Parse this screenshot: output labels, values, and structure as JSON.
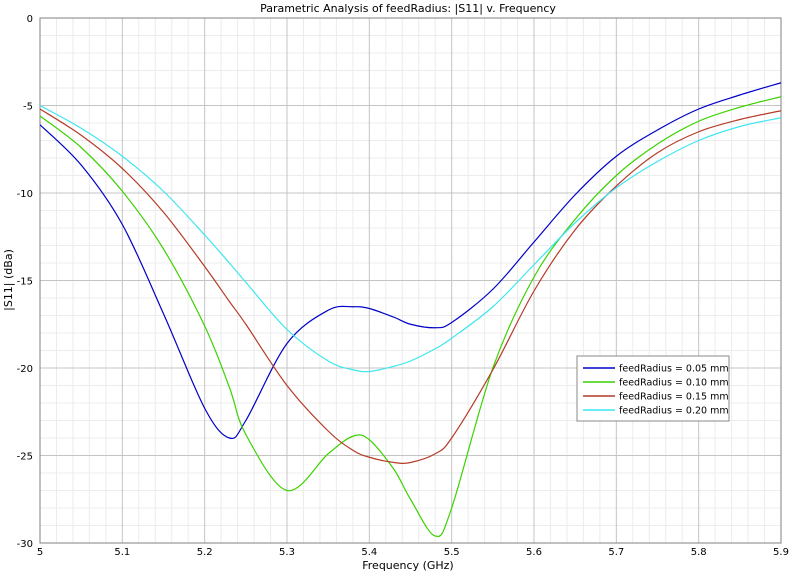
{
  "chart_data": {
    "type": "line",
    "title": "Parametric Analysis of feedRadius: |S11| v. Frequency",
    "xlabel": "Frequency (GHz)",
    "ylabel": "|S11| (dBa)",
    "xlim": [
      5.0,
      5.9
    ],
    "ylim": [
      -30,
      0
    ],
    "xticks": [
      5.0,
      5.1,
      5.2,
      5.3,
      5.4,
      5.5,
      5.6,
      5.7,
      5.8,
      5.9
    ],
    "xtick_labels": [
      "5",
      "5.1",
      "5.2",
      "5.3",
      "5.4",
      "5.5",
      "5.6",
      "5.7",
      "5.8",
      "5.9"
    ],
    "yticks": [
      0,
      -5,
      -10,
      -15,
      -20,
      -25,
      -30
    ],
    "ytick_labels": [
      "0",
      "-5",
      "-10",
      "-15",
      "-20",
      "-25",
      "-30"
    ],
    "grid": true,
    "minor_grid": true,
    "legend_position": "lower-right",
    "x": [
      5.0,
      5.05,
      5.1,
      5.15,
      5.2,
      5.23,
      5.25,
      5.3,
      5.35,
      5.38,
      5.4,
      5.43,
      5.45,
      5.48,
      5.5,
      5.55,
      5.6,
      5.65,
      5.7,
      5.75,
      5.8,
      5.85,
      5.9
    ],
    "series": [
      {
        "name": "feedRadius = 0.05 mm",
        "color": "#0000c8",
        "values": [
          -6.1,
          -8.4,
          -11.8,
          -16.9,
          -22.3,
          -24.0,
          -23.0,
          -18.6,
          -16.7,
          -16.5,
          -16.6,
          -17.1,
          -17.5,
          -17.7,
          -17.4,
          -15.5,
          -12.8,
          -10.1,
          -7.9,
          -6.4,
          -5.2,
          -4.4,
          -3.7
        ]
      },
      {
        "name": "feedRadius = 0.10 mm",
        "color": "#3cd200",
        "values": [
          -5.6,
          -7.4,
          -9.9,
          -13.2,
          -17.6,
          -21.1,
          -23.8,
          -27.0,
          -24.9,
          -23.9,
          -24.1,
          -25.8,
          -27.5,
          -29.6,
          -28.0,
          -20.0,
          -14.8,
          -11.5,
          -9.0,
          -7.2,
          -5.9,
          -5.1,
          -4.5
        ]
      },
      {
        "name": "feedRadius = 0.15 mm",
        "color": "#b43c28",
        "values": [
          -5.2,
          -6.7,
          -8.6,
          -11.1,
          -14.2,
          -16.2,
          -17.5,
          -21.0,
          -23.6,
          -24.7,
          -25.1,
          -25.4,
          -25.4,
          -24.9,
          -24.0,
          -20.1,
          -15.6,
          -12.1,
          -9.6,
          -7.7,
          -6.5,
          -5.8,
          -5.3
        ]
      },
      {
        "name": "feedRadius = 0.20 mm",
        "color": "#3ce6f0",
        "values": [
          -5.0,
          -6.3,
          -7.9,
          -9.9,
          -12.4,
          -14.0,
          -15.1,
          -17.8,
          -19.6,
          -20.1,
          -20.2,
          -19.9,
          -19.6,
          -18.9,
          -18.3,
          -16.5,
          -14.1,
          -11.7,
          -9.7,
          -8.2,
          -7.0,
          -6.2,
          -5.7
        ]
      }
    ]
  }
}
